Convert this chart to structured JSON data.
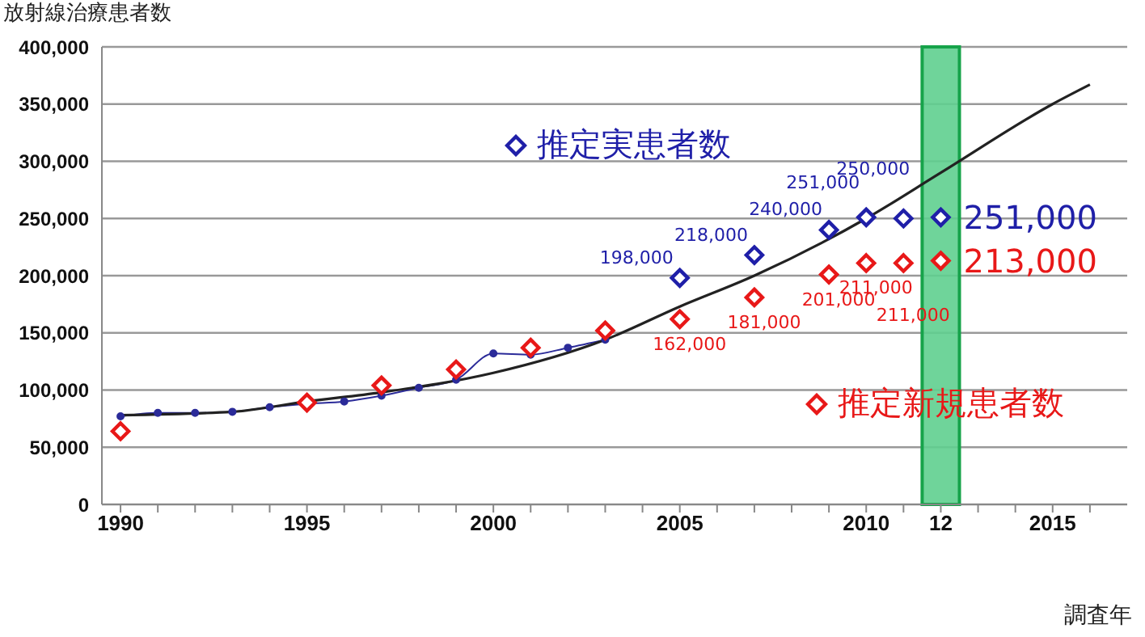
{
  "chart_data": {
    "type": "scatter",
    "ylabel": "放射線治療患者数",
    "xlabel": "調査年",
    "xlim": [
      1989.5,
      2017
    ],
    "xticks": [
      1990,
      {
        "value": 1991,
        "label": null
      },
      {
        "value": 1992,
        "label": null
      },
      {
        "value": 1993,
        "label": null
      },
      {
        "value": 1994,
        "label": null
      },
      1995,
      {
        "value": 1996,
        "label": null
      },
      {
        "value": 1997,
        "label": null
      },
      {
        "value": 1998,
        "label": null
      },
      {
        "value": 1999,
        "label": null
      },
      2000,
      {
        "value": 2001,
        "label": null
      },
      {
        "value": 2002,
        "label": null
      },
      {
        "value": 2003,
        "label": null
      },
      {
        "value": 2004,
        "label": null
      },
      2005,
      {
        "value": 2006,
        "label": null
      },
      {
        "value": 2007,
        "label": null
      },
      {
        "value": 2008,
        "label": null
      },
      {
        "value": 2009,
        "label": null
      },
      2010,
      {
        "value": 2011,
        "label": null
      },
      {
        "value": 2012,
        "label": "12"
      },
      {
        "value": 2013,
        "label": null
      },
      {
        "value": 2014,
        "label": null
      },
      2015,
      {
        "value": 2016,
        "label": null
      }
    ],
    "ylim": [
      0,
      400000
    ],
    "yticks": [
      {
        "value": 0,
        "label": "0"
      },
      {
        "value": 50000,
        "label": "50,000"
      },
      {
        "value": 100000,
        "label": "100,000"
      },
      {
        "value": 150000,
        "label": "150,000"
      },
      {
        "value": 200000,
        "label": "200,000"
      },
      {
        "value": 250000,
        "label": "250,000"
      },
      {
        "value": 300000,
        "label": "300,000"
      },
      {
        "value": 350000,
        "label": "350,000"
      },
      {
        "value": 400000,
        "label": "400,000"
      }
    ],
    "grid": "y",
    "legend": "right",
    "bands": [
      {
        "axis": "x",
        "from": 2011.5,
        "to": 2012.5,
        "color": "#5fcf8f"
      }
    ],
    "series": [
      {
        "type": "line",
        "color": "#2b2b99",
        "marker": "circle",
        "x": [
          1990,
          1991,
          1992,
          1993,
          1994,
          1995,
          1996,
          1997,
          1998,
          1999,
          2000,
          2001,
          2002,
          2003
        ],
        "values": [
          77000,
          80000,
          80000,
          81000,
          85000,
          88000,
          90000,
          95000,
          102000,
          109000,
          132000,
          131000,
          137000,
          144000
        ]
      },
      {
        "name": "推定実患者数",
        "color": "#1f1fa8",
        "marker": "diamond",
        "x": [
          2005,
          2007,
          2009,
          2010,
          2011,
          2012
        ],
        "values": [
          198000,
          218000,
          240000,
          251000,
          250000,
          251000
        ],
        "value_labels": [
          "198,000",
          "218,000",
          "240,000",
          "251,000",
          "250,000",
          "251,000"
        ]
      },
      {
        "name": "推定新規患者数",
        "color": "#e81818",
        "marker": "diamond",
        "x": [
          1990,
          1995,
          1997,
          1999,
          2001,
          2003,
          2005,
          2007,
          2009,
          2010,
          2011,
          2012
        ],
        "values": [
          64000,
          89000,
          104000,
          118000,
          137000,
          152000,
          162000,
          181000,
          201000,
          211000,
          211000,
          213000
        ],
        "value_labels": [
          null,
          null,
          null,
          null,
          null,
          null,
          "162,000",
          "181,000",
          "201,000",
          "211,000",
          "211,000",
          "213,000"
        ]
      },
      {
        "type": "line",
        "color": "#222222",
        "marker": "none",
        "x": [
          1990,
          1993,
          1995,
          1997,
          2000,
          2003,
          2005,
          2007,
          2010,
          2012,
          2015,
          2016
        ],
        "values": [
          78000,
          81000,
          90000,
          98000,
          115000,
          144000,
          173000,
          200000,
          250000,
          290000,
          350000,
          367000
        ]
      }
    ]
  }
}
